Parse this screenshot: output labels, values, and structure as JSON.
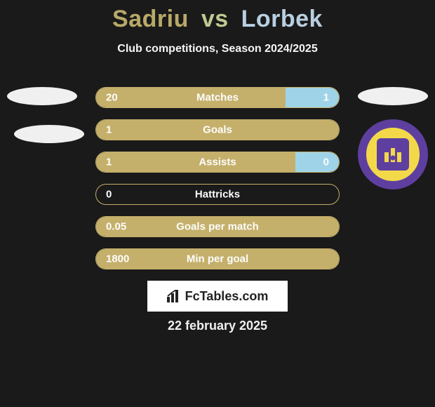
{
  "header": {
    "player1": "Sadriu",
    "vs": "vs",
    "player2": "Lorbek",
    "subtitle": "Club competitions, Season 2024/2025",
    "p1_color": "#b8a968",
    "vs_color": "#bfc890",
    "p2_color": "#b8cfe0"
  },
  "colors": {
    "background": "#1a1a1a",
    "bar_border": "#c5b06b",
    "fill_left": "#c5b06b",
    "fill_right": "#9fd4e8",
    "text": "#fdfdfd",
    "ellipse": "#f0f0f0",
    "badge_outer": "#5e3fa0",
    "badge_bg": "#f3d94a",
    "fctables_bg": "#ffffff"
  },
  "rows": [
    {
      "label": "Matches",
      "left_val": "20",
      "right_val": "1",
      "left_pct": 78,
      "right_pct": 22
    },
    {
      "label": "Goals",
      "left_val": "1",
      "right_val": "",
      "left_pct": 100,
      "right_pct": 0
    },
    {
      "label": "Assists",
      "left_val": "1",
      "right_val": "0",
      "left_pct": 82,
      "right_pct": 18
    },
    {
      "label": "Hattricks",
      "left_val": "0",
      "right_val": "",
      "left_pct": 0,
      "right_pct": 0
    },
    {
      "label": "Goals per match",
      "left_val": "0.05",
      "right_val": "",
      "left_pct": 100,
      "right_pct": 0
    },
    {
      "label": "Min per goal",
      "left_val": "1800",
      "right_val": "",
      "left_pct": 100,
      "right_pct": 0
    }
  ],
  "footer": {
    "brand": "FcTables.com",
    "date": "22 february 2025"
  }
}
